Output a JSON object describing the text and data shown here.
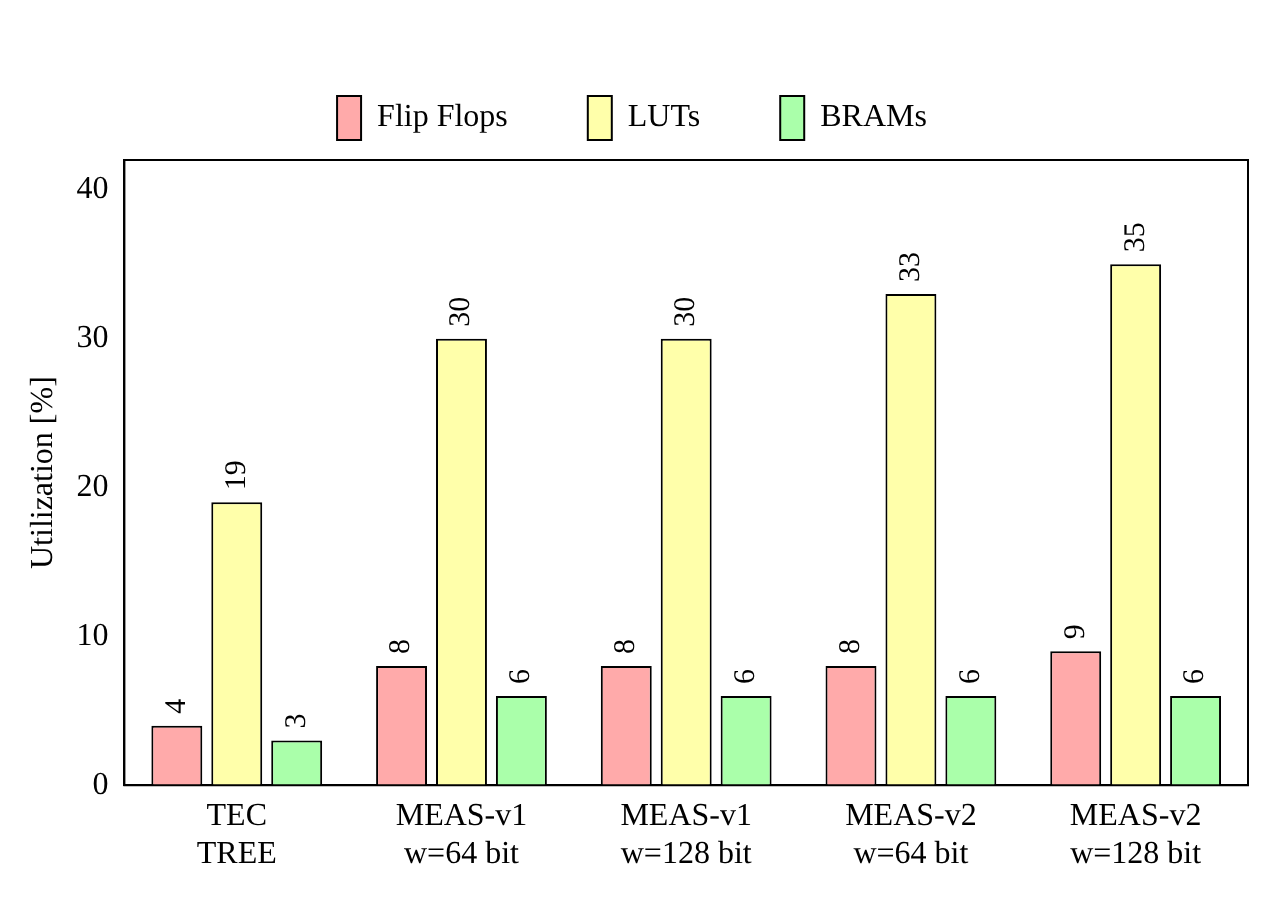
{
  "chart_data": {
    "type": "bar",
    "ylabel": "Utilization [%]",
    "categories": [
      "TEC\nTREE",
      "MEAS-v1\nw=64 bit",
      "MEAS-v1\nw=128 bit",
      "MEAS-v2\nw=64 bit",
      "MEAS-v2\nw=128 bit"
    ],
    "series": [
      {
        "name": "Flip Flops",
        "color": "#ffaaaa",
        "values": [
          4,
          8,
          8,
          8,
          9
        ]
      },
      {
        "name": "LUTs",
        "color": "#ffffaa",
        "values": [
          19,
          30,
          30,
          33,
          35
        ]
      },
      {
        "name": "BRAMs",
        "color": "#aaffaa",
        "values": [
          3,
          6,
          6,
          6,
          6
        ]
      }
    ],
    "ylim": [
      0,
      42
    ],
    "yticks": [
      0,
      10,
      20,
      30,
      40
    ],
    "grid": false,
    "legend": "top",
    "data_labels": true
  }
}
